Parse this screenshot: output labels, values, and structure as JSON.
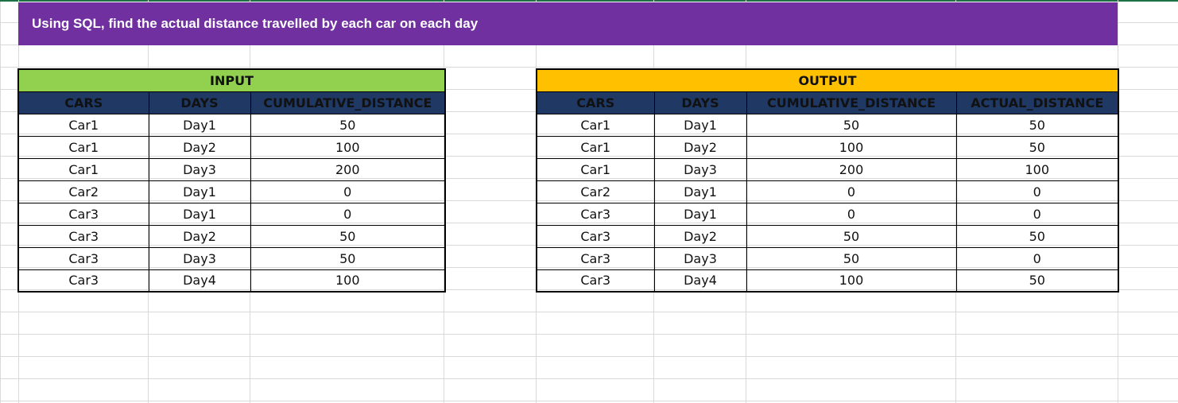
{
  "banner": {
    "text": "Using SQL, find the actual distance travelled by each car on each day"
  },
  "input": {
    "title": "INPUT",
    "columns": [
      "CARS",
      "DAYS",
      "CUMULATIVE_DISTANCE"
    ],
    "rows": [
      [
        "Car1",
        "Day1",
        "50"
      ],
      [
        "Car1",
        "Day2",
        "100"
      ],
      [
        "Car1",
        "Day3",
        "200"
      ],
      [
        "Car2",
        "Day1",
        "0"
      ],
      [
        "Car3",
        "Day1",
        "0"
      ],
      [
        "Car3",
        "Day2",
        "50"
      ],
      [
        "Car3",
        "Day3",
        "50"
      ],
      [
        "Car3",
        "Day4",
        "100"
      ]
    ]
  },
  "output": {
    "title": "OUTPUT",
    "columns": [
      "CARS",
      "DAYS",
      "CUMULATIVE_DISTANCE",
      "ACTUAL_DISTANCE"
    ],
    "rows": [
      [
        "Car1",
        "Day1",
        "50",
        "50"
      ],
      [
        "Car1",
        "Day2",
        "100",
        "50"
      ],
      [
        "Car1",
        "Day3",
        "200",
        "100"
      ],
      [
        "Car2",
        "Day1",
        "0",
        "0"
      ],
      [
        "Car3",
        "Day1",
        "0",
        "0"
      ],
      [
        "Car3",
        "Day2",
        "50",
        "50"
      ],
      [
        "Car3",
        "Day3",
        "50",
        "0"
      ],
      [
        "Car3",
        "Day4",
        "100",
        "50"
      ]
    ]
  },
  "colors": {
    "banner_bg": "#7030a0",
    "input_title_bg": "#92d050",
    "output_title_bg": "#ffc000",
    "header_bg": "#1f3864"
  }
}
